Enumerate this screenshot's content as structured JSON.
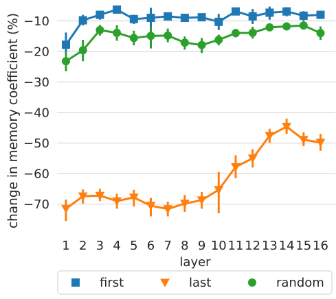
{
  "chart_data": {
    "type": "line",
    "xlabel": "layer",
    "ylabel": "change in memory coefficient (%)",
    "categories": [
      "1",
      "2",
      "3",
      "4",
      "5",
      "6",
      "7",
      "8",
      "9",
      "10",
      "11",
      "12",
      "13",
      "14",
      "15",
      "16"
    ],
    "yticks": [
      -10,
      -20,
      -30,
      -40,
      -50,
      -60,
      -70
    ],
    "ytick_labels": [
      "−10",
      "−20",
      "−30",
      "−40",
      "−50",
      "−60",
      "−70"
    ],
    "ylim": [
      -79.5,
      -4.5
    ],
    "grid": "horizontal",
    "legend_position": "bottom",
    "series": [
      {
        "name": "first",
        "color": "#1f77b4",
        "marker": "square",
        "values": [
          -17.8,
          -9.8,
          -8.0,
          -6.3,
          -9.4,
          -9.0,
          -8.5,
          -9.0,
          -8.8,
          -10.3,
          -6.9,
          -8.5,
          -7.3,
          -6.9,
          -8.3,
          -8.0
        ],
        "err_low": [
          -23.0,
          -11.5,
          -9.6,
          -7.5,
          -11.0,
          -12.5,
          -9.8,
          -10.2,
          -10.0,
          -13.0,
          -7.8,
          -11.0,
          -9.6,
          -8.5,
          -10.0,
          -8.6
        ],
        "err_high": [
          -13.8,
          -8.0,
          -6.7,
          -5.2,
          -8.0,
          -5.7,
          -7.3,
          -7.7,
          -7.6,
          -7.7,
          -6.0,
          -6.1,
          -5.3,
          -5.5,
          -6.8,
          -7.3
        ]
      },
      {
        "name": "last",
        "color": "#ff7f0e",
        "marker": "triangle-down",
        "values": [
          -71.5,
          -67.4,
          -67.2,
          -69.0,
          -67.8,
          -70.5,
          -71.6,
          -69.8,
          -68.7,
          -65.3,
          -57.8,
          -55.0,
          -47.6,
          -44.6,
          -48.9,
          -49.8
        ],
        "err_low": [
          -75.5,
          -69.8,
          -69.0,
          -71.5,
          -70.8,
          -74.0,
          -74.0,
          -72.5,
          -71.5,
          -73.0,
          -61.5,
          -58.0,
          -50.0,
          -47.0,
          -51.0,
          -52.5
        ],
        "err_high": [
          -68.5,
          -65.2,
          -65.0,
          -66.6,
          -65.3,
          -68.0,
          -69.2,
          -67.0,
          -66.0,
          -59.5,
          -54.0,
          -52.0,
          -45.3,
          -42.0,
          -46.5,
          -47.0
        ]
      },
      {
        "name": "random",
        "color": "#2ca02c",
        "marker": "circle",
        "values": [
          -23.2,
          -19.6,
          -13.0,
          -13.9,
          -15.6,
          -14.9,
          -14.8,
          -17.1,
          -17.9,
          -16.2,
          -14.0,
          -13.9,
          -12.1,
          -11.8,
          -11.5,
          -14.0
        ],
        "err_low": [
          -26.5,
          -23.2,
          -14.8,
          -16.5,
          -18.0,
          -19.0,
          -17.0,
          -19.4,
          -20.5,
          -18.0,
          -15.4,
          -15.8,
          -12.8,
          -12.9,
          -12.2,
          -16.2
        ],
        "err_high": [
          -20.0,
          -16.2,
          -11.3,
          -11.4,
          -13.2,
          -12.0,
          -12.5,
          -15.1,
          -15.6,
          -14.5,
          -12.6,
          -11.9,
          -11.3,
          -10.5,
          -10.9,
          -11.8
        ]
      }
    ]
  },
  "legend": {
    "items": [
      {
        "label": "first",
        "marker": "square",
        "color": "#1f77b4"
      },
      {
        "label": "last",
        "marker": "triangle-down",
        "color": "#ff7f0e"
      },
      {
        "label": "random",
        "marker": "circle",
        "color": "#2ca02c"
      }
    ]
  }
}
